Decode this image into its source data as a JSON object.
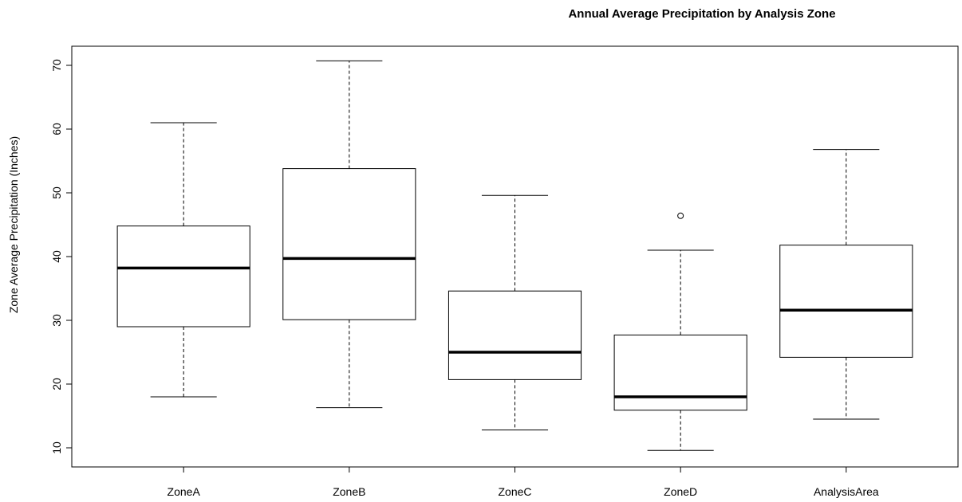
{
  "chart_data": {
    "type": "box",
    "title": "Annual Average Precipitation by Analysis Zone",
    "xlabel": "",
    "ylabel": "Zone Average Precipitation (Inches)",
    "ylim": [
      7,
      73
    ],
    "yticks": [
      10,
      20,
      30,
      40,
      50,
      60,
      70
    ],
    "grid": false,
    "categories": [
      "ZoneA",
      "ZoneB",
      "ZoneC",
      "ZoneD",
      "AnalysisArea"
    ],
    "boxes": [
      {
        "category": "ZoneA",
        "whisker_low": 18.0,
        "q1": 29.0,
        "median": 38.2,
        "q3": 44.8,
        "whisker_high": 61.0,
        "outliers": []
      },
      {
        "category": "ZoneB",
        "whisker_low": 16.3,
        "q1": 30.1,
        "median": 39.7,
        "q3": 53.8,
        "whisker_high": 70.7,
        "outliers": []
      },
      {
        "category": "ZoneC",
        "whisker_low": 12.8,
        "q1": 20.7,
        "median": 25.0,
        "q3": 34.6,
        "whisker_high": 49.6,
        "outliers": []
      },
      {
        "category": "ZoneD",
        "whisker_low": 9.6,
        "q1": 15.9,
        "median": 18.0,
        "q3": 27.7,
        "whisker_high": 41.0,
        "outliers": [
          46.4
        ]
      },
      {
        "category": "AnalysisArea",
        "whisker_low": 14.5,
        "q1": 24.2,
        "median": 31.6,
        "q3": 41.8,
        "whisker_high": 56.8,
        "outliers": []
      }
    ],
    "colors": {
      "stroke": "#000000",
      "box_fill": "#ffffff",
      "background": "#ffffff"
    }
  }
}
